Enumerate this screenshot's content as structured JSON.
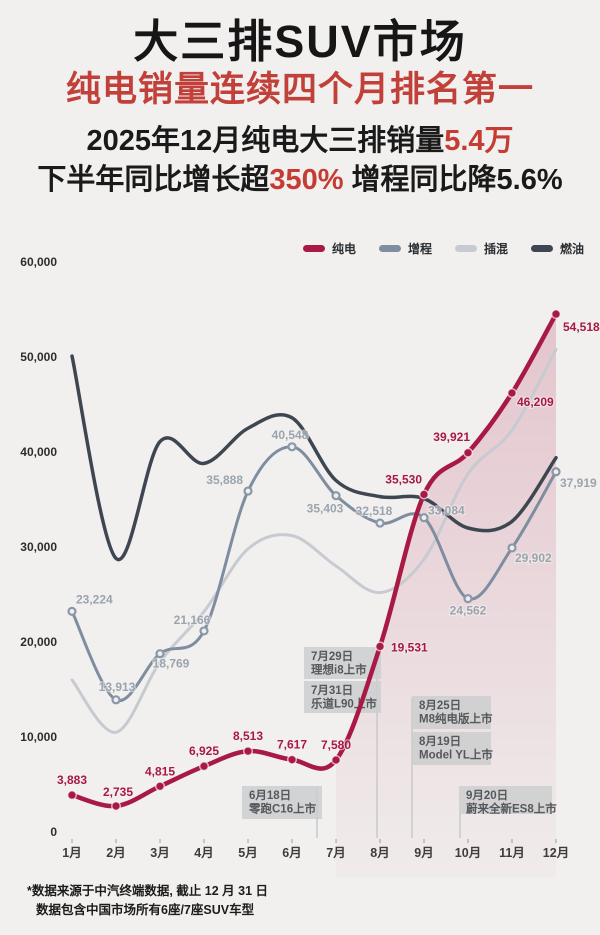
{
  "header": {
    "title": "大三排SUV市场",
    "subtitle": "纯电销量连续四个月排名第一",
    "line3_prefix": "2025年12月纯电大三排销量",
    "line3_highlight": "5.4万",
    "line4_prefix": "下半年同比增长超",
    "line4_highlight": "350%",
    "line4_suffix": " 增程同比降5.6%"
  },
  "legend": [
    {
      "label": "纯电",
      "color": "#a81945"
    },
    {
      "label": "增程",
      "color": "#7f8da0"
    },
    {
      "label": "插混",
      "color": "#c7cbd1"
    },
    {
      "label": "燃油",
      "color": "#3e4652"
    }
  ],
  "chart_data": {
    "type": "line",
    "categories": [
      "1月",
      "2月",
      "3月",
      "4月",
      "5月",
      "6月",
      "7月",
      "8月",
      "9月",
      "10月",
      "11月",
      "12月"
    ],
    "ylim": [
      0,
      60000
    ],
    "y_tick_step": 10000,
    "grid": false,
    "legend_position": "top-right",
    "series": [
      {
        "name": "纯电",
        "color": "#a81945",
        "labeled": true,
        "values": [
          3883,
          2735,
          4815,
          6925,
          8513,
          7617,
          7580,
          19531,
          35530,
          39921,
          46209,
          54518
        ]
      },
      {
        "name": "增程",
        "color": "#7f8da0",
        "labeled": true,
        "values": [
          23224,
          13913,
          18769,
          21166,
          35888,
          40548,
          35403,
          32518,
          33084,
          24562,
          29902,
          37919
        ]
      },
      {
        "name": "插混",
        "color": "#c7cbd1",
        "labeled": false,
        "values": [
          16000,
          10500,
          17900,
          23200,
          29800,
          31200,
          28000,
          25200,
          28700,
          37700,
          42300,
          50800
        ]
      },
      {
        "name": "燃油",
        "color": "#3e4652",
        "labeled": false,
        "values": [
          50100,
          28800,
          41100,
          38800,
          42500,
          43600,
          37000,
          35300,
          35100,
          32000,
          32700,
          39400
        ]
      }
    ],
    "annotations": [
      {
        "date": "6月18日",
        "event": "零跑C16上市"
      },
      {
        "date": "7月29日",
        "event": "理想i8上市"
      },
      {
        "date": "7月31日",
        "event": "乐道L90上市"
      },
      {
        "date": "8月25日",
        "event": "M8纯电版上市"
      },
      {
        "date": "8月19日",
        "event": "Model YL上市"
      },
      {
        "date": "9月20日",
        "event": "蔚来全新ES8上市"
      }
    ]
  },
  "footnote": {
    "line1": "*数据来源于中汽终端数据, 截止 12 月 31 日",
    "line2": "数据包含中国市场所有6座/7座SUV车型"
  }
}
